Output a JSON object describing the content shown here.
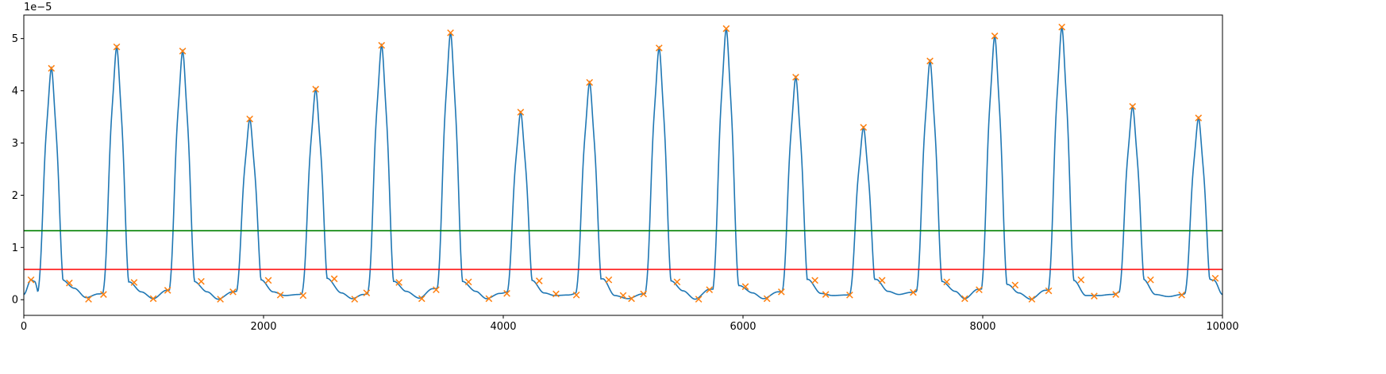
{
  "chart_data": {
    "type": "line",
    "title": "",
    "xlabel": "",
    "ylabel": "",
    "xlim": [
      0,
      10000
    ],
    "ylim": [
      -3e-06,
      5.45e-05
    ],
    "y_offset_label": "1e−5",
    "xticks": [
      0,
      2000,
      4000,
      6000,
      8000,
      10000
    ],
    "xtick_labels": [
      "0",
      "2000",
      "4000",
      "6000",
      "8000",
      "10000"
    ],
    "yticks": [
      0,
      1e-05,
      2e-05,
      3e-05,
      4e-05,
      5e-05
    ],
    "ytick_labels": [
      "0",
      "1",
      "2",
      "3",
      "4",
      "5"
    ],
    "grid": false,
    "series": [
      {
        "role": "signal",
        "color": "#1f77b4",
        "peaks": [
          [
            230,
            4.43e-05
          ],
          [
            775,
            4.84e-05
          ],
          [
            1325,
            4.76e-05
          ],
          [
            1885,
            3.46e-05
          ],
          [
            2435,
            4.03e-05
          ],
          [
            2985,
            4.87e-05
          ],
          [
            3560,
            5.11e-05
          ],
          [
            4145,
            3.59e-05
          ],
          [
            4720,
            4.16e-05
          ],
          [
            5300,
            4.82e-05
          ],
          [
            5860,
            5.19e-05
          ],
          [
            6440,
            4.26e-05
          ],
          [
            7005,
            3.3e-05
          ],
          [
            7560,
            4.57e-05
          ],
          [
            8100,
            5.05e-05
          ],
          [
            8660,
            5.22e-05
          ],
          [
            9250,
            3.7e-05
          ],
          [
            9800,
            3.48e-05
          ]
        ],
        "baseline_points": [
          [
            0,
            1e-06
          ],
          [
            60,
            3.8e-06
          ],
          [
            90,
            3.5e-06
          ],
          [
            130,
            8e-07
          ],
          [
            320,
            3.8e-06
          ],
          [
            420,
            2.2e-06
          ],
          [
            520,
            4e-07
          ],
          [
            620,
            1.1e-06
          ],
          [
            880,
            3.4e-06
          ],
          [
            980,
            1.5e-06
          ],
          [
            1080,
            2e-07
          ],
          [
            1190,
            1.8e-06
          ],
          [
            1420,
            3.5e-06
          ],
          [
            1530,
            1.5e-06
          ],
          [
            1620,
            1e-07
          ],
          [
            1740,
            1.5e-06
          ],
          [
            1980,
            3.8e-06
          ],
          [
            2080,
            1.5e-06
          ],
          [
            2180,
            8e-07
          ],
          [
            2290,
            1e-06
          ],
          [
            2530,
            4.1e-06
          ],
          [
            2650,
            1.3e-06
          ],
          [
            2740,
            2e-07
          ],
          [
            2830,
            1e-06
          ],
          [
            3090,
            3.5e-06
          ],
          [
            3190,
            1.6e-06
          ],
          [
            3300,
            3e-07
          ],
          [
            3410,
            2.1e-06
          ],
          [
            3660,
            3.5e-06
          ],
          [
            3770,
            1.6e-06
          ],
          [
            3860,
            2e-07
          ],
          [
            3970,
            1.2e-06
          ],
          [
            4240,
            3.7e-06
          ],
          [
            4340,
            1.3e-06
          ],
          [
            4430,
            8e-07
          ],
          [
            4540,
            9e-07
          ],
          [
            4830,
            4e-06
          ],
          [
            4930,
            8e-07
          ],
          [
            5040,
            2e-07
          ],
          [
            5160,
            1.1e-06
          ],
          [
            5400,
            3.6e-06
          ],
          [
            5500,
            1.7e-06
          ],
          [
            5600,
            1e-07
          ],
          [
            5720,
            2e-06
          ],
          [
            5970,
            2.7e-06
          ],
          [
            6080,
            1.3e-06
          ],
          [
            6170,
            2e-07
          ],
          [
            6290,
            1.5e-06
          ],
          [
            6540,
            3.9e-06
          ],
          [
            6650,
            1.2e-06
          ],
          [
            6750,
            8e-07
          ],
          [
            6860,
            9e-07
          ],
          [
            7110,
            3.9e-06
          ],
          [
            7210,
            1.6e-06
          ],
          [
            7300,
            1e-06
          ],
          [
            7400,
            1.4e-06
          ],
          [
            7660,
            3.5e-06
          ],
          [
            7770,
            1.6e-06
          ],
          [
            7850,
            2e-07
          ],
          [
            7960,
            2e-06
          ],
          [
            8210,
            2.9e-06
          ],
          [
            8300,
            1.3e-06
          ],
          [
            8400,
            1e-07
          ],
          [
            8520,
            1.8e-06
          ],
          [
            8760,
            3.7e-06
          ],
          [
            8860,
            8e-07
          ],
          [
            8970,
            8e-07
          ],
          [
            9070,
            1e-06
          ],
          [
            9340,
            3.9e-06
          ],
          [
            9440,
            1e-06
          ],
          [
            9550,
            6e-07
          ],
          [
            9660,
            1e-06
          ],
          [
            9860,
            4.2e-06
          ],
          [
            9930,
            3.7e-06
          ],
          [
            10000,
            1e-06
          ]
        ]
      },
      {
        "role": "threshold-high",
        "color": "#008000",
        "y": 1.32e-05
      },
      {
        "role": "threshold-low",
        "color": "#ff0000",
        "y": 5.8e-06
      }
    ],
    "markers": {
      "color": "#ff7f0e",
      "shape": "x",
      "points": [
        [
          60,
          3.8e-06
        ],
        [
          230,
          4.43e-05
        ],
        [
          380,
          3.2e-06
        ],
        [
          540,
          1e-07
        ],
        [
          665,
          1e-06
        ],
        [
          775,
          4.84e-05
        ],
        [
          920,
          3.3e-06
        ],
        [
          1080,
          2e-07
        ],
        [
          1200,
          1.8e-06
        ],
        [
          1325,
          4.76e-05
        ],
        [
          1480,
          3.5e-06
        ],
        [
          1640,
          1e-07
        ],
        [
          1745,
          1.5e-06
        ],
        [
          1885,
          3.46e-05
        ],
        [
          2040,
          3.7e-06
        ],
        [
          2140,
          9e-07
        ],
        [
          2330,
          8e-07
        ],
        [
          2435,
          4.03e-05
        ],
        [
          2590,
          4e-06
        ],
        [
          2760,
          1e-07
        ],
        [
          2860,
          1.3e-06
        ],
        [
          2985,
          4.87e-05
        ],
        [
          3130,
          3.3e-06
        ],
        [
          3320,
          2e-07
        ],
        [
          3440,
          1.9e-06
        ],
        [
          3560,
          5.11e-05
        ],
        [
          3710,
          3.4e-06
        ],
        [
          3880,
          2e-07
        ],
        [
          4030,
          1.2e-06
        ],
        [
          4145,
          3.59e-05
        ],
        [
          4300,
          3.6e-06
        ],
        [
          4440,
          1.1e-06
        ],
        [
          4610,
          9e-07
        ],
        [
          4720,
          4.16e-05
        ],
        [
          4880,
          3.8e-06
        ],
        [
          5000,
          8e-07
        ],
        [
          5070,
          2e-07
        ],
        [
          5170,
          1.1e-06
        ],
        [
          5300,
          4.82e-05
        ],
        [
          5450,
          3.4e-06
        ],
        [
          5630,
          1e-07
        ],
        [
          5720,
          1.9e-06
        ],
        [
          5860,
          5.19e-05
        ],
        [
          6020,
          2.5e-06
        ],
        [
          6200,
          2e-07
        ],
        [
          6320,
          1.5e-06
        ],
        [
          6440,
          4.26e-05
        ],
        [
          6600,
          3.7e-06
        ],
        [
          6690,
          1e-06
        ],
        [
          6890,
          9e-07
        ],
        [
          7005,
          3.3e-05
        ],
        [
          7160,
          3.7e-06
        ],
        [
          7420,
          1.4e-06
        ],
        [
          7560,
          4.57e-05
        ],
        [
          7700,
          3.4e-06
        ],
        [
          7850,
          2e-07
        ],
        [
          7970,
          1.9e-06
        ],
        [
          8100,
          5.05e-05
        ],
        [
          8270,
          2.8e-06
        ],
        [
          8410,
          1e-07
        ],
        [
          8550,
          1.7e-06
        ],
        [
          8660,
          5.22e-05
        ],
        [
          8820,
          3.8e-06
        ],
        [
          8930,
          7e-07
        ],
        [
          9110,
          1e-06
        ],
        [
          9250,
          3.7e-05
        ],
        [
          9400,
          3.8e-06
        ],
        [
          9660,
          9e-07
        ],
        [
          9800,
          3.48e-05
        ],
        [
          9940,
          4.1e-06
        ]
      ]
    }
  }
}
